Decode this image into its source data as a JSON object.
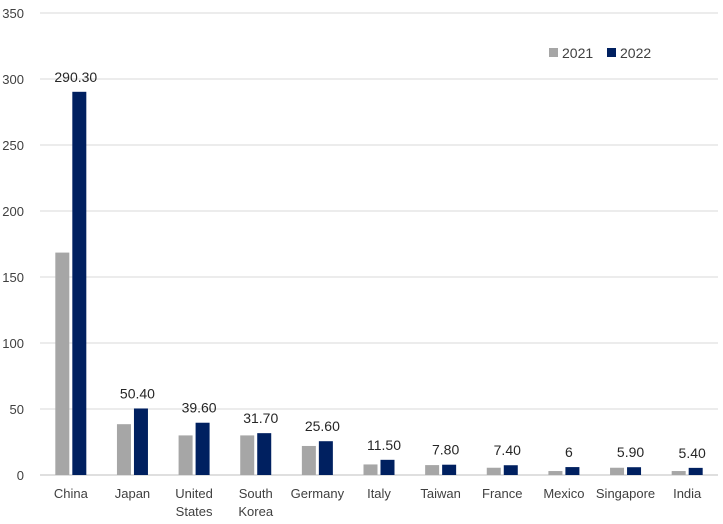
{
  "chart_data": {
    "type": "bar",
    "title": "",
    "xlabel": "",
    "ylabel": "",
    "ylim": [
      0,
      350
    ],
    "yticks": [
      0,
      50,
      100,
      150,
      200,
      250,
      300,
      350
    ],
    "grid": true,
    "legend_position": "top-right",
    "categories": [
      [
        "China"
      ],
      [
        "Japan"
      ],
      [
        "United",
        "States"
      ],
      [
        "South",
        "Korea"
      ],
      [
        "Germany"
      ],
      [
        "Italy"
      ],
      [
        "Taiwan"
      ],
      [
        "France"
      ],
      [
        "Mexico"
      ],
      [
        "Singapore"
      ],
      [
        "India"
      ]
    ],
    "series": [
      {
        "name": "2021",
        "color": "#a6a6a6",
        "values": [
          168.5,
          38.5,
          30.0,
          30.0,
          22.0,
          8.0,
          7.5,
          5.5,
          3.0,
          5.5,
          3.0
        ]
      },
      {
        "name": "2022",
        "color": "#002060",
        "values": [
          290.3,
          50.4,
          39.6,
          31.7,
          25.6,
          11.5,
          7.8,
          7.4,
          6.0,
          5.9,
          5.4
        ]
      }
    ],
    "data_labels": [
      "290.30",
      "50.40",
      "39.60",
      "31.70",
      "25.60",
      "11.50",
      "7.80",
      "7.40",
      "6",
      "5.90",
      "5.40"
    ]
  }
}
